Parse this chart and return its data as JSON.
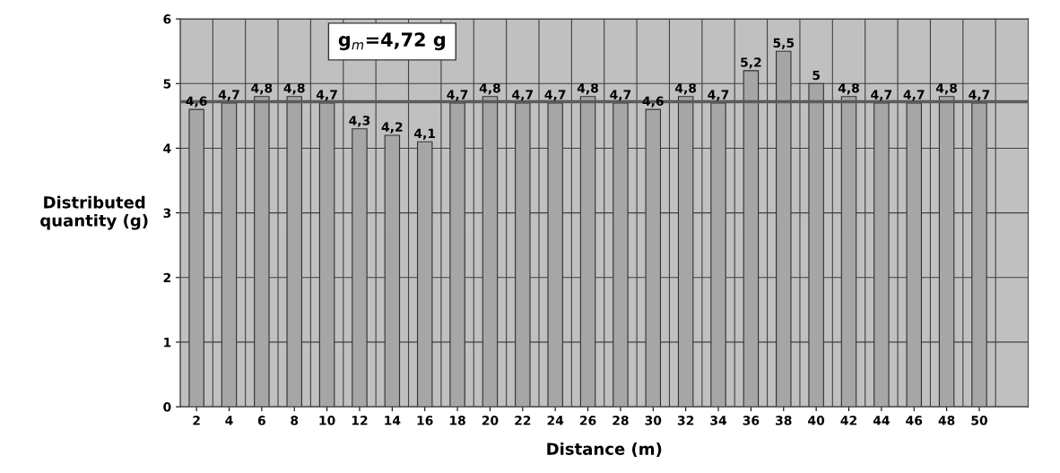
{
  "chart_data": {
    "type": "bar",
    "xlabel": "Distance (m)",
    "ylabel": "Distributed\nquantity (g)",
    "categories": [
      "2",
      "4",
      "6",
      "8",
      "10",
      "12",
      "14",
      "16",
      "18",
      "20",
      "22",
      "24",
      "26",
      "28",
      "30",
      "32",
      "34",
      "36",
      "38",
      "40",
      "42",
      "44",
      "46",
      "48",
      "50"
    ],
    "values": [
      4.6,
      4.7,
      4.8,
      4.8,
      4.7,
      4.3,
      4.2,
      4.1,
      4.7,
      4.8,
      4.7,
      4.7,
      4.8,
      4.7,
      4.6,
      4.8,
      4.7,
      5.2,
      5.5,
      5,
      4.8,
      4.7,
      4.7,
      4.8,
      4.7
    ],
    "value_labels": [
      "4,6",
      "4,7",
      "4,8",
      "4,8",
      "4,7",
      "4,3",
      "4,2",
      "4,1",
      "4,7",
      "4,8",
      "4,7",
      "4,7",
      "4,8",
      "4,7",
      "4,6",
      "4,8",
      "4,7",
      "5,2",
      "5,5",
      "5",
      "4,8",
      "4,7",
      "4,7",
      "4,8",
      "4,7"
    ],
    "color": "#a6a6a6",
    "ylim": [
      0,
      6
    ],
    "yticks": [
      0,
      1,
      2,
      3,
      4,
      5,
      6
    ],
    "grid": true,
    "ref_lines": [
      {
        "axis": "y",
        "value": 4.72,
        "label": "g$_{m}$=4,72 g",
        "color": "#5a5a5a"
      }
    ]
  }
}
